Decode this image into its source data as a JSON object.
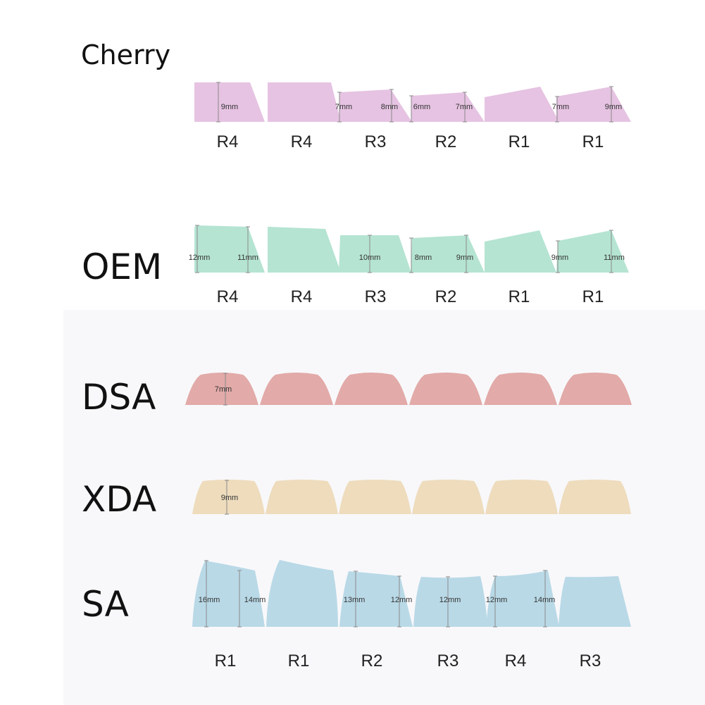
{
  "colors": {
    "cherry": "#e6c3e2",
    "oem": "#b5e4d2",
    "dsa": "#e2aaa8",
    "xda": "#eedcbd",
    "sa": "#b9d9e7",
    "measure_line": "#8a8a8a"
  },
  "profiles": [
    {
      "name": "Cherry",
      "rows": [
        "R4",
        "R4",
        "R3",
        "R2",
        "R1",
        "R1"
      ],
      "measurements": [
        "9mm",
        "7mm",
        "8mm",
        "6mm",
        "7mm",
        "7mm",
        "9mm"
      ]
    },
    {
      "name": "OEM",
      "rows": [
        "R4",
        "R4",
        "R3",
        "R2",
        "R1",
        "R1"
      ],
      "measurements": [
        "12mm",
        "11mm",
        "10mm",
        "8mm",
        "9mm",
        "9mm",
        "11mm"
      ]
    },
    {
      "name": "DSA",
      "rows": [],
      "measurements": [
        "7mm"
      ]
    },
    {
      "name": "XDA",
      "rows": [],
      "measurements": [
        "9mm"
      ]
    },
    {
      "name": "SA",
      "rows": [
        "R1",
        "R1",
        "R2",
        "R3",
        "R4",
        "R3"
      ],
      "measurements": [
        "16mm",
        "14mm",
        "13mm",
        "12mm",
        "12mm",
        "12mm",
        "14mm"
      ]
    }
  ]
}
